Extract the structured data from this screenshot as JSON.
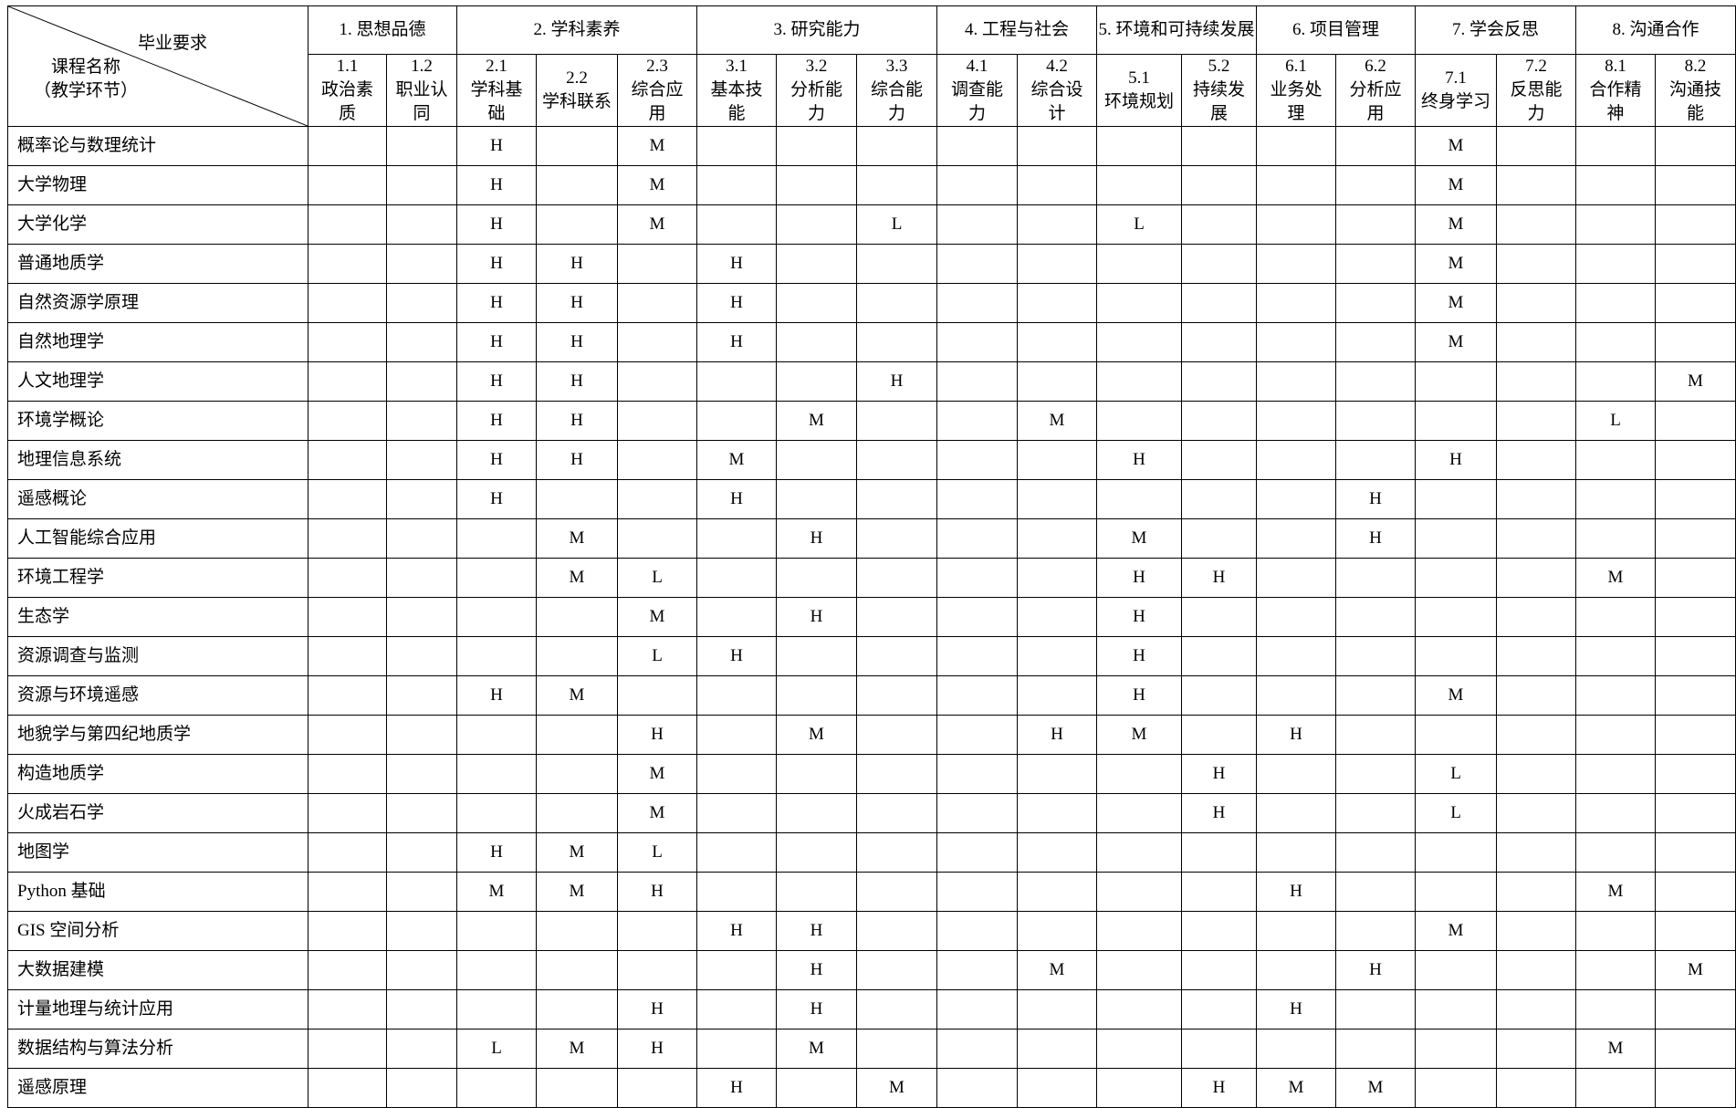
{
  "corner": {
    "requirement_label": "毕业要求",
    "course_label": "课程名称",
    "course_sublabel": "（教学环节）"
  },
  "groups": [
    {
      "label": "1. 思想品德",
      "span": 2
    },
    {
      "label": "2. 学科素养",
      "span": 3
    },
    {
      "label": "3. 研究能力",
      "span": 3
    },
    {
      "label": "4. 工程与社会",
      "span": 2
    },
    {
      "label": "5. 环境和可持续发展",
      "span": 2
    },
    {
      "label": "6. 项目管理",
      "span": 2
    },
    {
      "label": "7. 学会反思",
      "span": 2
    },
    {
      "label": "8. 沟通合作",
      "span": 2
    }
  ],
  "columns": [
    {
      "code": "1.1",
      "name": "政治素质"
    },
    {
      "code": "1.2",
      "name": "职业认同"
    },
    {
      "code": "2.1",
      "name": "学科基础"
    },
    {
      "code": "2.2",
      "name": "学科联系"
    },
    {
      "code": "2.3",
      "name": "综合应用"
    },
    {
      "code": "3.1",
      "name": "基本技能"
    },
    {
      "code": "3.2",
      "name": "分析能力"
    },
    {
      "code": "3.3",
      "name": "综合能力"
    },
    {
      "code": "4.1",
      "name": "调查能力"
    },
    {
      "code": "4.2",
      "name": "综合设计"
    },
    {
      "code": "5.1",
      "name": "环境规划"
    },
    {
      "code": "5.2",
      "name": "持续发展"
    },
    {
      "code": "6.1",
      "name": "业务处理"
    },
    {
      "code": "6.2",
      "name": "分析应用"
    },
    {
      "code": "7.1",
      "name": "终身学习"
    },
    {
      "code": "7.2",
      "name": "反思能力"
    },
    {
      "code": "8.1",
      "name": "合作精神"
    },
    {
      "code": "8.2",
      "name": "沟通技能"
    }
  ],
  "rows": [
    {
      "course": "概率论与数理统计",
      "values": [
        "",
        "",
        "H",
        "",
        "M",
        "",
        "",
        "",
        "",
        "",
        "",
        "",
        "",
        "",
        "M",
        "",
        "",
        ""
      ]
    },
    {
      "course": "大学物理",
      "values": [
        "",
        "",
        "H",
        "",
        "M",
        "",
        "",
        "",
        "",
        "",
        "",
        "",
        "",
        "",
        "M",
        "",
        "",
        ""
      ]
    },
    {
      "course": "大学化学",
      "values": [
        "",
        "",
        "H",
        "",
        "M",
        "",
        "",
        "L",
        "",
        "",
        "L",
        "",
        "",
        "",
        "M",
        "",
        "",
        ""
      ]
    },
    {
      "course": "普通地质学",
      "values": [
        "",
        "",
        "H",
        "H",
        "",
        "H",
        "",
        "",
        "",
        "",
        "",
        "",
        "",
        "",
        "M",
        "",
        "",
        ""
      ]
    },
    {
      "course": "自然资源学原理",
      "values": [
        "",
        "",
        "H",
        "H",
        "",
        "H",
        "",
        "",
        "",
        "",
        "",
        "",
        "",
        "",
        "M",
        "",
        "",
        ""
      ]
    },
    {
      "course": "自然地理学",
      "values": [
        "",
        "",
        "H",
        "H",
        "",
        "H",
        "",
        "",
        "",
        "",
        "",
        "",
        "",
        "",
        "M",
        "",
        "",
        ""
      ]
    },
    {
      "course": "人文地理学",
      "values": [
        "",
        "",
        "H",
        "H",
        "",
        "",
        "",
        "H",
        "",
        "",
        "",
        "",
        "",
        "",
        "",
        "",
        "",
        "M"
      ]
    },
    {
      "course": "环境学概论",
      "values": [
        "",
        "",
        "H",
        "H",
        "",
        "",
        "M",
        "",
        "",
        "M",
        "",
        "",
        "",
        "",
        "",
        "",
        "L",
        ""
      ]
    },
    {
      "course": "地理信息系统",
      "values": [
        "",
        "",
        "H",
        "H",
        "",
        "M",
        "",
        "",
        "",
        "",
        "H",
        "",
        "",
        "",
        "H",
        "",
        "",
        ""
      ]
    },
    {
      "course": "遥感概论",
      "values": [
        "",
        "",
        "H",
        "",
        "",
        "H",
        "",
        "",
        "",
        "",
        "",
        "",
        "",
        "H",
        "",
        "",
        "",
        ""
      ]
    },
    {
      "course": "人工智能综合应用",
      "values": [
        "",
        "",
        "",
        "M",
        "",
        "",
        "H",
        "",
        "",
        "",
        "M",
        "",
        "",
        "H",
        "",
        "",
        "",
        ""
      ]
    },
    {
      "course": "环境工程学",
      "values": [
        "",
        "",
        "",
        "M",
        "L",
        "",
        "",
        "",
        "",
        "",
        "H",
        "H",
        "",
        "",
        "",
        "",
        "M",
        ""
      ]
    },
    {
      "course": "生态学",
      "values": [
        "",
        "",
        "",
        "",
        "M",
        "",
        "H",
        "",
        "",
        "",
        "H",
        "",
        "",
        "",
        "",
        "",
        "",
        ""
      ]
    },
    {
      "course": "资源调查与监测",
      "values": [
        "",
        "",
        "",
        "",
        "L",
        "H",
        "",
        "",
        "",
        "",
        "H",
        "",
        "",
        "",
        "",
        "",
        "",
        ""
      ]
    },
    {
      "course": "资源与环境遥感",
      "values": [
        "",
        "",
        "H",
        "M",
        "",
        "",
        "",
        "",
        "",
        "",
        "H",
        "",
        "",
        "",
        "M",
        "",
        "",
        ""
      ]
    },
    {
      "course": "地貌学与第四纪地质学",
      "values": [
        "",
        "",
        "",
        "",
        "H",
        "",
        "M",
        "",
        "",
        "H",
        "M",
        "",
        "H",
        "",
        "",
        "",
        "",
        ""
      ]
    },
    {
      "course": "构造地质学",
      "values": [
        "",
        "",
        "",
        "",
        "M",
        "",
        "",
        "",
        "",
        "",
        "",
        "H",
        "",
        "",
        "L",
        "",
        "",
        ""
      ]
    },
    {
      "course": "火成岩石学",
      "values": [
        "",
        "",
        "",
        "",
        "M",
        "",
        "",
        "",
        "",
        "",
        "",
        "H",
        "",
        "",
        "L",
        "",
        "",
        ""
      ]
    },
    {
      "course": "地图学",
      "values": [
        "",
        "",
        "H",
        "M",
        "L",
        "",
        "",
        "",
        "",
        "",
        "",
        "",
        "",
        "",
        "",
        "",
        "",
        ""
      ]
    },
    {
      "course": "Python 基础",
      "values": [
        "",
        "",
        "M",
        "M",
        "H",
        "",
        "",
        "",
        "",
        "",
        "",
        "",
        "H",
        "",
        "",
        "",
        "M",
        ""
      ]
    },
    {
      "course": "GIS 空间分析",
      "values": [
        "",
        "",
        "",
        "",
        "",
        "H",
        "H",
        "",
        "",
        "",
        "",
        "",
        "",
        "",
        "M",
        "",
        "",
        ""
      ]
    },
    {
      "course": "大数据建模",
      "values": [
        "",
        "",
        "",
        "",
        "",
        "",
        "H",
        "",
        "",
        "M",
        "",
        "",
        "",
        "H",
        "",
        "",
        "",
        "M"
      ]
    },
    {
      "course": "计量地理与统计应用",
      "values": [
        "",
        "",
        "",
        "",
        "H",
        "",
        "H",
        "",
        "",
        "",
        "",
        "",
        "H",
        "",
        "",
        "",
        "",
        ""
      ]
    },
    {
      "course": "数据结构与算法分析",
      "values": [
        "",
        "",
        "L",
        "M",
        "H",
        "",
        "M",
        "",
        "",
        "",
        "",
        "",
        "",
        "",
        "",
        "",
        "M",
        ""
      ]
    },
    {
      "course": "遥感原理",
      "values": [
        "",
        "",
        "",
        "",
        "",
        "H",
        "",
        "M",
        "",
        "",
        "",
        "H",
        "M",
        "M",
        "",
        "",
        "",
        ""
      ]
    }
  ]
}
